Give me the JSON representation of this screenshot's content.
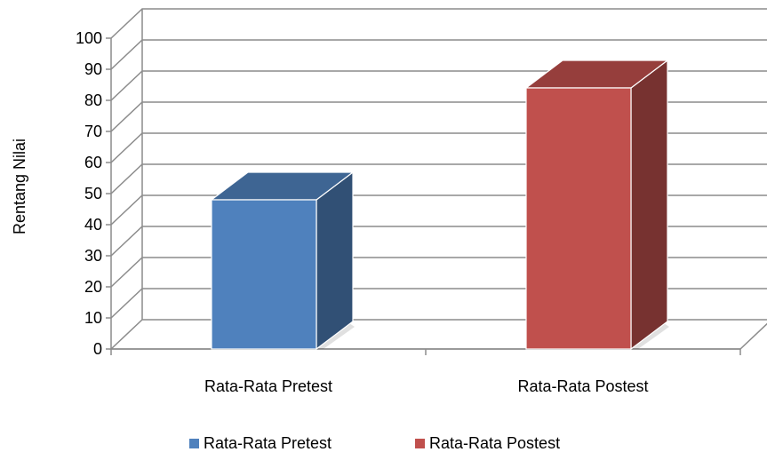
{
  "chart_data": {
    "type": "bar",
    "categories": [
      "Rata-Rata Pretest",
      "Rata-Rata Postest"
    ],
    "series": [
      {
        "name": "Rata-Rata Pretest",
        "values": [
          48,
          null
        ],
        "color": "#4F81BD"
      },
      {
        "name": "Rata-Rata Postest",
        "values": [
          null,
          84
        ],
        "color": "#C0504D"
      }
    ],
    "ylabel": "Rentang Nilai",
    "xlabel": "",
    "ylim": [
      0,
      100
    ],
    "yticks": [
      0,
      10,
      20,
      30,
      40,
      50,
      60,
      70,
      80,
      90,
      100
    ],
    "grid": true,
    "three_d": true,
    "legend": {
      "position": "bottom",
      "entries": [
        "Rata-Rata Pretest",
        "Rata-Rata Postest"
      ]
    }
  }
}
